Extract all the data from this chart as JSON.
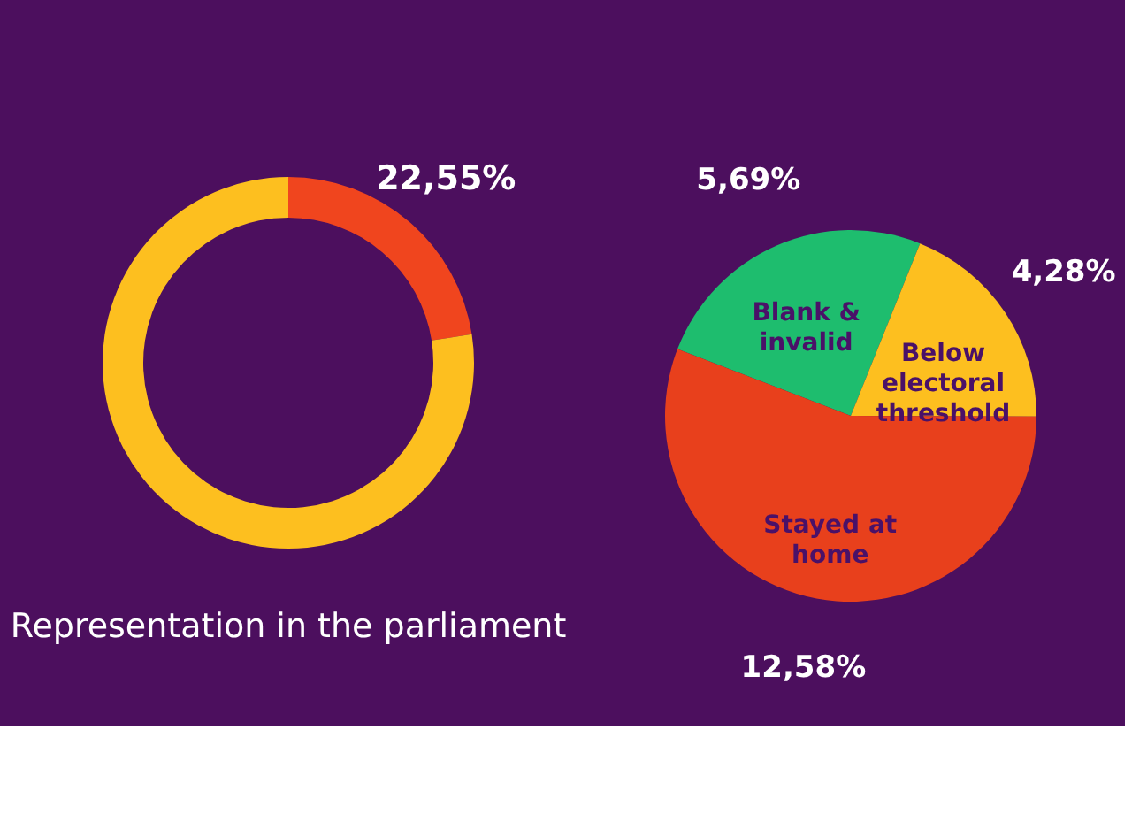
{
  "chart_data": [
    {
      "type": "donut",
      "title": "Representation in the parliament",
      "categories": [
        null,
        null
      ],
      "values": [
        22.55,
        77.45
      ],
      "colors": [
        "#f0451e",
        "#fdbf1f"
      ],
      "value_labels": [
        "22,55%",
        null
      ]
    },
    {
      "type": "pie",
      "categories": [
        "Blank & invalid",
        "Below electoral threshold",
        "Stayed at home"
      ],
      "values": [
        5.69,
        4.28,
        12.58
      ],
      "colors": [
        "#1ebd6e",
        "#fdbf1f",
        "#e8401c"
      ],
      "value_labels": [
        "5,69%",
        "4,28%",
        "12,58%"
      ]
    }
  ]
}
